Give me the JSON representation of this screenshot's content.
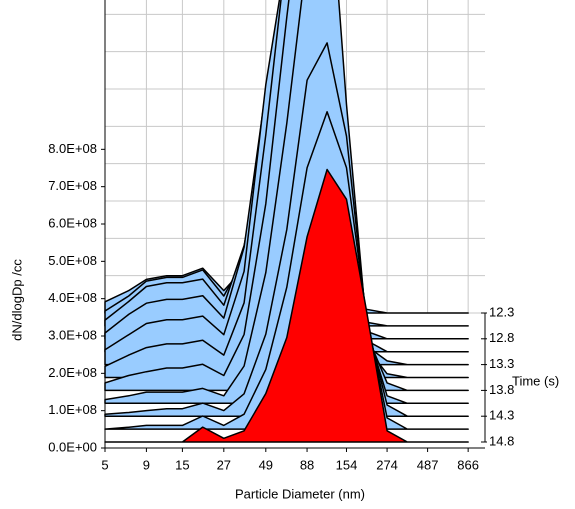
{
  "chart_data": {
    "type": "waterfall",
    "xlabel": "Particle Diameter (nm)",
    "ylabel": "dN/dlogDp /cc",
    "zlabel": "Time (s)",
    "x": [
      5,
      7,
      9,
      12,
      15,
      20,
      27,
      36,
      49,
      66,
      88,
      117,
      154,
      205,
      274,
      365,
      487,
      650,
      866
    ],
    "xlim": [
      5,
      1100
    ],
    "xscale": "log",
    "xticks": [
      5,
      9,
      15,
      27,
      49,
      88,
      154,
      274,
      487,
      866
    ],
    "ylim": [
      0,
      1200000000.0
    ],
    "yticks": [
      {
        "value": 0,
        "label": "0.0E+00"
      },
      {
        "value": 100000000.0,
        "label": "1.0E+08"
      },
      {
        "value": 200000000.0,
        "label": "2.0E+08"
      },
      {
        "value": 300000000.0,
        "label": "3.0E+08"
      },
      {
        "value": 400000000.0,
        "label": "4.0E+08"
      },
      {
        "value": 500000000.0,
        "label": "5.0E+08"
      },
      {
        "value": 600000000.0,
        "label": "6.0E+08"
      },
      {
        "value": 700000000.0,
        "label": "7.0E+08"
      },
      {
        "value": 800000000.0,
        "label": "8.0E+08"
      }
    ],
    "zlim": [
      12.3,
      14.8
    ],
    "zticks": [
      12.3,
      12.8,
      13.3,
      13.8,
      14.3,
      14.8
    ],
    "grid": true,
    "series": [
      {
        "z": 12.3,
        "color": "#99ccff",
        "values": [
          30000000.0,
          60000000.0,
          90000000.0,
          100000000.0,
          100000000.0,
          120000000.0,
          60000000.0,
          120000000.0,
          200000000.0,
          120000000.0,
          50000000.0,
          30000000.0,
          20000000.0,
          10000000.0,
          0,
          0,
          0,
          0,
          0
        ]
      },
      {
        "z": 12.55,
        "color": "#99ccff",
        "values": [
          40000000.0,
          80000000.0,
          120000000.0,
          130000000.0,
          130000000.0,
          150000000.0,
          80000000.0,
          180000000.0,
          350000000.0,
          250000000.0,
          120000000.0,
          60000000.0,
          30000000.0,
          10000000.0,
          0,
          0,
          0,
          0,
          0
        ]
      },
      {
        "z": 12.8,
        "color": "#99ccff",
        "values": [
          50000000.0,
          100000000.0,
          140000000.0,
          150000000.0,
          150000000.0,
          160000000.0,
          90000000.0,
          250000000.0,
          550000000.0,
          500000000.0,
          300000000.0,
          120000000.0,
          50000000.0,
          20000000.0,
          0,
          0,
          0,
          0,
          0
        ]
      },
      {
        "z": 13.05,
        "color": "#99ccff",
        "values": [
          50000000.0,
          100000000.0,
          130000000.0,
          140000000.0,
          140000000.0,
          150000000.0,
          90000000.0,
          280000000.0,
          700000000.0,
          850000000.0,
          650000000.0,
          300000000.0,
          100000000.0,
          30000000.0,
          0,
          0,
          0,
          0,
          0
        ]
      },
      {
        "z": 13.3,
        "color": "#99ccff",
        "values": [
          40000000.0,
          80000000.0,
          110000000.0,
          120000000.0,
          120000000.0,
          130000000.0,
          80000000.0,
          250000000.0,
          750000000.0,
          1100000000.0,
          1000000000.0,
          550000000.0,
          200000000.0,
          50000000.0,
          10000000.0,
          0,
          0,
          0,
          0
        ]
      },
      {
        "z": 13.55,
        "color": "#99ccff",
        "values": [
          30000000.0,
          60000000.0,
          80000000.0,
          90000000.0,
          90000000.0,
          100000000.0,
          60000000.0,
          200000000.0,
          650000000.0,
          1150000000.0,
          1350000000.0,
          900000000.0,
          350000000.0,
          80000000.0,
          10000000.0,
          0,
          0,
          0,
          0
        ]
      },
      {
        "z": 13.8,
        "color": "#99ccff",
        "values": [
          20000000.0,
          40000000.0,
          50000000.0,
          60000000.0,
          60000000.0,
          70000000.0,
          40000000.0,
          150000000.0,
          500000000.0,
          1000000000.0,
          1450000000.0,
          1200000000.0,
          550000000.0,
          150000000.0,
          20000000.0,
          0,
          0,
          0,
          0
        ]
      },
      {
        "z": 14.05,
        "color": "#99ccff",
        "values": [
          10000000.0,
          20000000.0,
          30000000.0,
          30000000.0,
          30000000.0,
          40000000.0,
          20000000.0,
          100000000.0,
          350000000.0,
          750000000.0,
          1200000000.0,
          1500000000.0,
          800000000.0,
          200000000.0,
          20000000.0,
          0,
          0,
          0,
          0
        ]
      },
      {
        "z": 14.3,
        "color": "#99ccff",
        "values": [
          5000000.0,
          10000000.0,
          15000000.0,
          20000000.0,
          20000000.0,
          35000000.0,
          15000000.0,
          60000000.0,
          220000000.0,
          500000000.0,
          900000000.0,
          1000000000.0,
          750000000.0,
          250000000.0,
          30000000.0,
          0,
          0,
          0,
          0
        ]
      },
      {
        "z": 14.55,
        "color": "#99ccff",
        "values": [
          0,
          5000000.0,
          10000000.0,
          10000000.0,
          10000000.0,
          35000000.0,
          10000000.0,
          40000000.0,
          160000000.0,
          380000000.0,
          700000000.0,
          850000000.0,
          700000000.0,
          300000000.0,
          30000000.0,
          0,
          0,
          0,
          0
        ]
      },
      {
        "z": 14.8,
        "color": "#ff0000",
        "values": [
          0,
          0,
          0,
          0,
          0,
          40000000.0,
          10000000.0,
          30000000.0,
          130000000.0,
          280000000.0,
          550000000.0,
          730000000.0,
          650000000.0,
          350000000.0,
          30000000.0,
          0,
          0,
          0,
          0
        ]
      }
    ]
  }
}
